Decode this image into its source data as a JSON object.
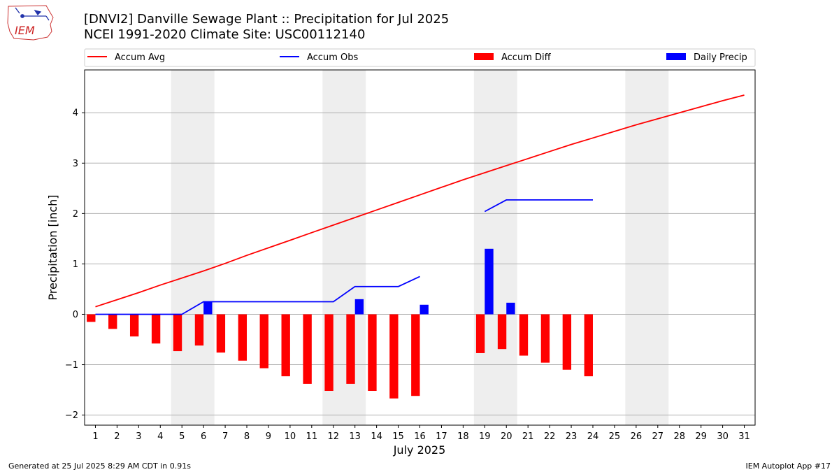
{
  "header": {
    "title": "[DNVI2] Danville Sewage Plant :: Precipitation for Jul 2025",
    "subtitle": "NCEI 1991-2020 Climate Site: USC00112140"
  },
  "logo_text": "IEM",
  "footer": {
    "generated": "Generated at 25 Jul 2025 8:29 AM CDT in 0.91s",
    "app": "IEM Autoplot App #17"
  },
  "chart_data": {
    "type": "bar",
    "title": "[DNVI2] Danville Sewage Plant :: Precipitation for Jul 2025",
    "xlabel": "July 2025",
    "ylabel": "Precipitation [inch]",
    "ylim": [
      -2.2,
      4.85
    ],
    "xlim": [
      0.5,
      31.5
    ],
    "yticks": [
      -2,
      -1,
      0,
      1,
      2,
      3,
      4
    ],
    "ytick_labels": [
      "−2",
      "−1",
      "0",
      "1",
      "2",
      "3",
      "4"
    ],
    "xticks": [
      1,
      2,
      3,
      4,
      5,
      6,
      7,
      8,
      9,
      10,
      11,
      12,
      13,
      14,
      15,
      16,
      17,
      18,
      19,
      20,
      21,
      22,
      23,
      24,
      25,
      26,
      27,
      28,
      29,
      30,
      31
    ],
    "grid": "horizontal",
    "legend_position": "top",
    "weekend_shading": [
      [
        4.5,
        6.5
      ],
      [
        11.5,
        13.5
      ],
      [
        18.5,
        20.5
      ],
      [
        25.5,
        27.5
      ]
    ],
    "series": [
      {
        "name": "Accum Avg",
        "kind": "line",
        "color": "#ff0000",
        "x": [
          1,
          2,
          3,
          4,
          5,
          6,
          7,
          8,
          9,
          10,
          11,
          12,
          13,
          14,
          15,
          16,
          17,
          18,
          19,
          20,
          21,
          22,
          23,
          24,
          25,
          26,
          27,
          28,
          29,
          30,
          31
        ],
        "values": [
          0.15,
          0.29,
          0.43,
          0.58,
          0.72,
          0.86,
          1.01,
          1.17,
          1.32,
          1.47,
          1.62,
          1.77,
          1.92,
          2.07,
          2.22,
          2.37,
          2.52,
          2.67,
          2.81,
          2.95,
          3.09,
          3.23,
          3.37,
          3.5,
          3.63,
          3.76,
          3.88,
          4.0,
          4.12,
          4.24,
          4.35
        ]
      },
      {
        "name": "Accum Obs",
        "kind": "line",
        "color": "#0000ff",
        "x": [
          1,
          2,
          3,
          4,
          5,
          6,
          7,
          8,
          9,
          10,
          11,
          12,
          13,
          14,
          15,
          16,
          17,
          18,
          19,
          20,
          21,
          22,
          23,
          24
        ],
        "values": [
          0.0,
          0.0,
          0.0,
          0.0,
          0.0,
          0.25,
          0.25,
          0.25,
          0.25,
          0.25,
          0.25,
          0.25,
          0.55,
          0.55,
          0.55,
          0.75,
          null,
          null,
          2.04,
          2.27,
          2.27,
          2.27,
          2.27,
          2.27
        ]
      },
      {
        "name": "Accum Diff",
        "kind": "bar",
        "color": "#ff0000",
        "x": [
          1,
          2,
          3,
          4,
          5,
          6,
          7,
          8,
          9,
          10,
          11,
          12,
          13,
          14,
          15,
          16,
          19,
          20,
          21,
          22,
          23,
          24
        ],
        "values": [
          -0.15,
          -0.29,
          -0.44,
          -0.58,
          -0.73,
          -0.62,
          -0.76,
          -0.92,
          -1.07,
          -1.23,
          -1.38,
          -1.52,
          -1.38,
          -1.52,
          -1.67,
          -1.62,
          -0.77,
          -0.69,
          -0.82,
          -0.96,
          -1.1,
          -1.23
        ]
      },
      {
        "name": "Daily Precip",
        "kind": "bar",
        "color": "#0000ff",
        "x": [
          6,
          13,
          16,
          19,
          20
        ],
        "values": [
          0.25,
          0.3,
          0.19,
          1.3,
          0.23
        ]
      }
    ]
  }
}
